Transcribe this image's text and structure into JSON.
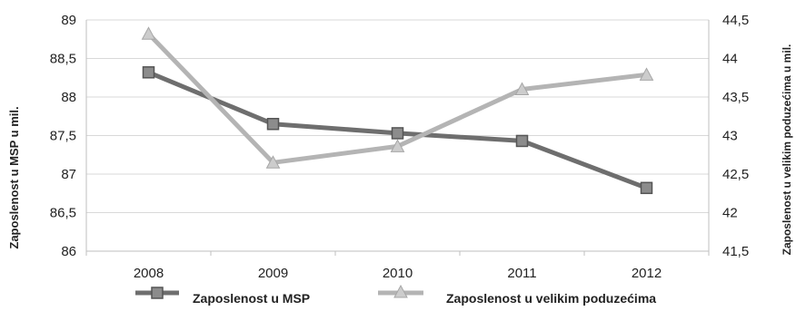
{
  "chart_data": {
    "type": "line",
    "categories": [
      "2008",
      "2009",
      "2010",
      "2011",
      "2012"
    ],
    "y_left": {
      "label": "Zaposlenost u MSP u mil.",
      "ylim": [
        86,
        89
      ],
      "ticks": [
        "86",
        "86,5",
        "87",
        "87,5",
        "88",
        "88,5",
        "89"
      ]
    },
    "y_right": {
      "label": "Zaposlenost u velikim poduzećima u mil.",
      "ylim": [
        41.5,
        44.5
      ],
      "ticks": [
        "41,5",
        "42",
        "42,5",
        "43",
        "43,5",
        "44",
        "44,5"
      ]
    },
    "series": [
      {
        "name": "Zaposlenost u MSP",
        "axis": "left",
        "marker": "square",
        "color": "#6e6e6e",
        "values": [
          88.32,
          87.65,
          87.53,
          87.43,
          86.82
        ]
      },
      {
        "name": "Zaposlenost u velikim poduzećima",
        "axis": "right",
        "marker": "triangle",
        "color": "#b4b4b4",
        "values": [
          44.32,
          42.65,
          42.86,
          43.6,
          43.79
        ]
      }
    ],
    "grid": true,
    "legend_position": "bottom",
    "title": "",
    "xlabel": ""
  }
}
